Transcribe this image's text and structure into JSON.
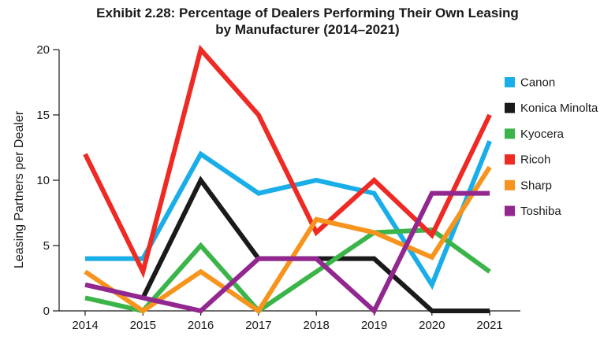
{
  "chart_data": {
    "type": "line",
    "title": "Exhibit 2.28: Percentage of Dealers Performing Their Own Leasing",
    "subtitle": "by Manufacturer (2014–2021)",
    "xlabel": "",
    "ylabel": "Leasing Partners per Dealer",
    "x": [
      "2014",
      "2015",
      "2016",
      "2017",
      "2018",
      "2019",
      "2020",
      "2021"
    ],
    "ylim": [
      0,
      20
    ],
    "yticks": [
      "0",
      "5",
      "10",
      "15",
      "20"
    ],
    "grid": false,
    "legend_position": "right",
    "series": [
      {
        "name": "Canon",
        "color": "#1aaee8",
        "values": [
          4,
          4,
          12,
          9,
          10,
          9,
          2,
          13
        ]
      },
      {
        "name": "Konica Minolta",
        "color": "#1a1a1a",
        "values": [
          null,
          1,
          10,
          4,
          4,
          4,
          0,
          0
        ]
      },
      {
        "name": "Kyocera",
        "color": "#3bb54a",
        "values": [
          1,
          0,
          5,
          0,
          3,
          6,
          6.2,
          3
        ]
      },
      {
        "name": "Ricoh",
        "color": "#ee2a24",
        "values": [
          12,
          3,
          20,
          15,
          6,
          10,
          5.8,
          15
        ]
      },
      {
        "name": "Sharp",
        "color": "#f7941d",
        "values": [
          3,
          0,
          3,
          0,
          7,
          6,
          4.1,
          11
        ]
      },
      {
        "name": "Toshiba",
        "color": "#92278f",
        "values": [
          2,
          1,
          0,
          4,
          4,
          0,
          9,
          9
        ]
      }
    ]
  }
}
